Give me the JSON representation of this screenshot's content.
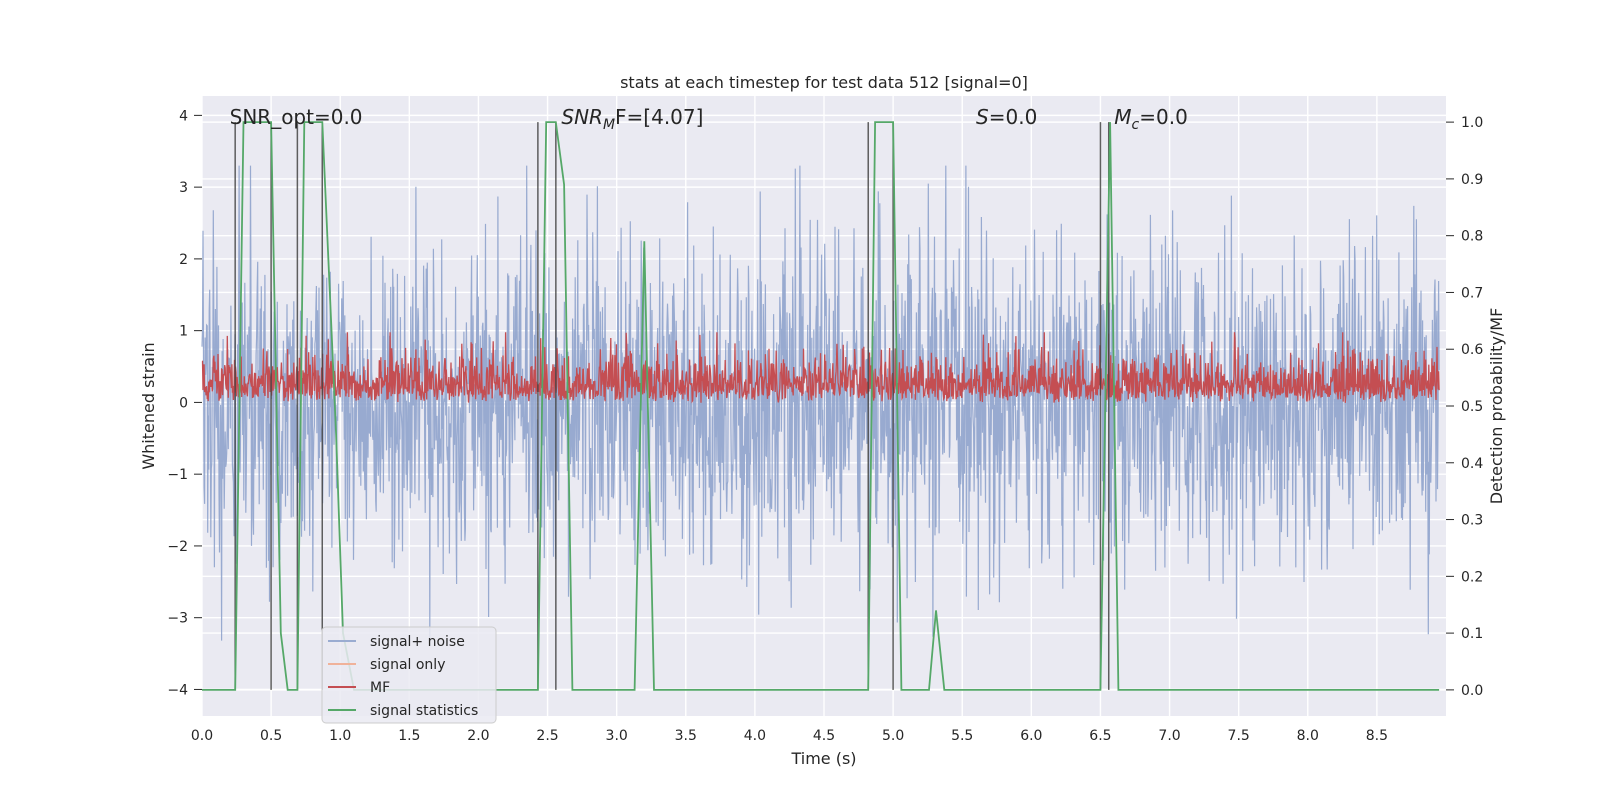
{
  "chart_data": {
    "type": "line",
    "title": "stats at each timestep for test data 512 [signal=0]",
    "xlabel": "Time (s)",
    "ylabel_left": "Whitened strain",
    "ylabel_right": "Detection probability/MF",
    "xlim": [
      0.0,
      9.0
    ],
    "ylim_left": [
      -4.37,
      4.27
    ],
    "ylim_right": [
      -0.046,
      1.046
    ],
    "x_ticks": [
      "0.0",
      "0.5",
      "1.0",
      "1.5",
      "2.0",
      "2.5",
      "3.0",
      "3.5",
      "4.0",
      "4.5",
      "5.0",
      "5.5",
      "6.0",
      "6.5",
      "7.0",
      "7.5",
      "8.0",
      "8.5"
    ],
    "y_ticks_left": [
      "−4",
      "−3",
      "−2",
      "−1",
      "0",
      "1",
      "2",
      "3",
      "4"
    ],
    "y_ticks_right": [
      "0.0",
      "0.1",
      "0.2",
      "0.3",
      "0.4",
      "0.5",
      "0.6",
      "0.7",
      "0.8",
      "0.9",
      "1.0"
    ],
    "grid": true,
    "legend": {
      "position": "lower-left",
      "entries": [
        {
          "label": "signal+ noise",
          "color": "#9aacd1"
        },
        {
          "label": "signal only",
          "color": "#f0b29a"
        },
        {
          "label": "MF",
          "color": "#c44e52"
        },
        {
          "label": "signal statistics",
          "color": "#55a868"
        }
      ]
    },
    "annotations": [
      {
        "key": "snr_opt",
        "text": "SNR_opt=0.0",
        "x": 0.2
      },
      {
        "key": "snr_mf",
        "text": "SNR",
        "sub": "M",
        "tail": "F=[4.07]",
        "italic": true,
        "x": 2.6
      },
      {
        "key": "s",
        "text": "S",
        "tail": "=0.0",
        "italic": true,
        "x": 5.6
      },
      {
        "key": "mc",
        "text": "M",
        "sub": "c",
        "tail": "=0.0",
        "italic": true,
        "x": 6.6
      }
    ],
    "series": [
      {
        "name": "signal+ noise",
        "axis": "left",
        "style": "noise",
        "amplitude_typical": 1.5,
        "min": -4.0,
        "max": 3.3
      },
      {
        "name": "signal only",
        "axis": "left",
        "values": []
      },
      {
        "name": "MF",
        "axis": "right",
        "style": "noise",
        "baseline": 0.5,
        "max": 0.63
      },
      {
        "name": "signal statistics",
        "axis": "right",
        "x": [
          0.0,
          0.24,
          0.3,
          0.5,
          0.57,
          0.62,
          0.69,
          0.74,
          0.87,
          0.97,
          1.02,
          1.1,
          2.43,
          2.49,
          2.56,
          2.62,
          2.68,
          3.13,
          3.2,
          3.27,
          4.82,
          4.87,
          5.0,
          5.06,
          5.26,
          5.31,
          5.37,
          6.5,
          6.57,
          6.63,
          8.95
        ],
        "values": [
          0.0,
          0.0,
          1.0,
          1.0,
          0.1,
          0.0,
          0.0,
          1.0,
          1.0,
          0.45,
          0.1,
          0.0,
          0.0,
          1.0,
          1.0,
          0.89,
          0.0,
          0.0,
          0.79,
          0.0,
          0.0,
          1.0,
          1.0,
          0.0,
          0.0,
          0.14,
          0.0,
          0.0,
          1.0,
          0.0,
          0.0
        ]
      }
    ],
    "vertical_markers_x": [
      0.24,
      0.5,
      0.69,
      0.87,
      2.43,
      2.56,
      4.82,
      5.0,
      6.5,
      6.56
    ]
  }
}
